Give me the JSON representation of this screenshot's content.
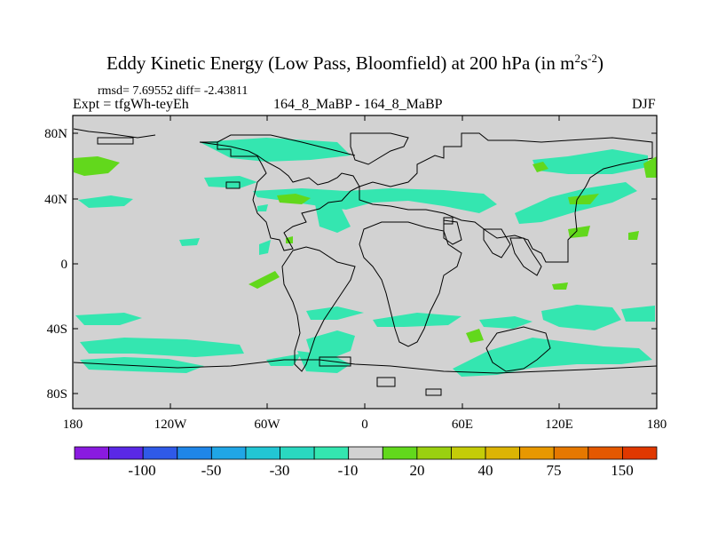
{
  "title": {
    "main": "Eddy Kinetic Energy (Low Pass, Bloomfield) at 200 hPa (in m",
    "sup1": "2",
    "mid": "s",
    "sup2": "-2",
    "close": ")"
  },
  "stats": "rmsd= 7.69552  diff= -2.43811",
  "expt_label": "Expt = tfgWh-teyEh",
  "center_label": "164_8_MaBP - 164_8_MaBP",
  "season": "DJF",
  "axes": {
    "y_ticks": [
      "80N",
      "40N",
      "0",
      "40S",
      "80S"
    ],
    "x_ticks": [
      "180",
      "120W",
      "60W",
      "0",
      "60E",
      "120E",
      "180"
    ]
  },
  "colorbar": {
    "colors": [
      "#8a1ae0",
      "#5a28e6",
      "#2f5ae8",
      "#1f86e8",
      "#20a6e6",
      "#22c6d4",
      "#2ad8c0",
      "#34e6b0",
      "#d2d2d2",
      "#62d81c",
      "#9ad010",
      "#c4cc08",
      "#dcb404",
      "#e89800",
      "#e67800",
      "#e45800",
      "#e03800"
    ],
    "labels": [
      "-100",
      "-50",
      "-30",
      "-10",
      "20",
      "40",
      "75",
      "150"
    ]
  },
  "map_colors": {
    "background": "#d2d2d2",
    "negative": "#34e6b0",
    "positive": "#62d81c",
    "coast": "#000000"
  }
}
